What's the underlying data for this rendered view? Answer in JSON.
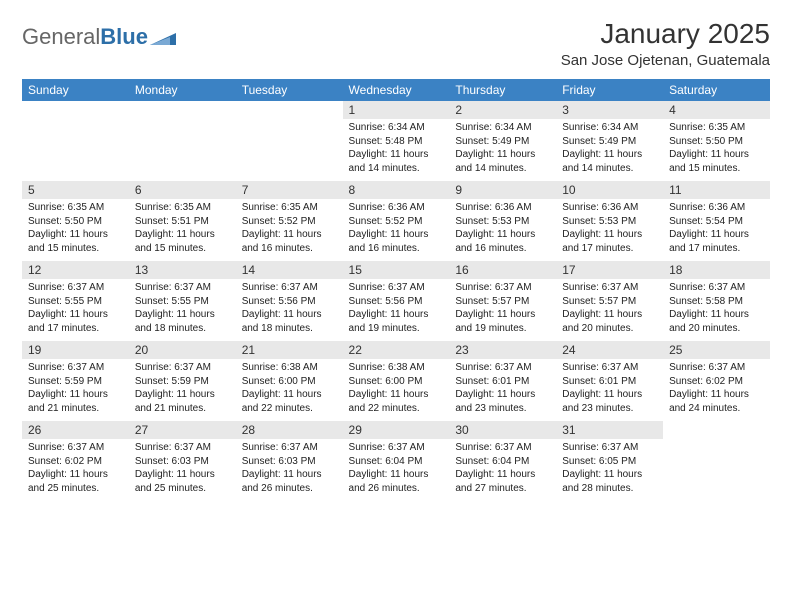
{
  "brand": {
    "word1": "General",
    "word2": "Blue"
  },
  "header": {
    "title": "January 2025",
    "location": "San Jose Ojetenan, Guatemala"
  },
  "colors": {
    "header_row": "#3b82c4",
    "week_rule": "#2d6fa8",
    "day_bg": "#e8e8e8",
    "logo_blue": "#2d6fa8",
    "text": "#222222",
    "background": "#ffffff"
  },
  "weekdays": [
    "Sunday",
    "Monday",
    "Tuesday",
    "Wednesday",
    "Thursday",
    "Friday",
    "Saturday"
  ],
  "weeks": [
    [
      {
        "n": "",
        "l": [
          "",
          "",
          "",
          ""
        ]
      },
      {
        "n": "",
        "l": [
          "",
          "",
          "",
          ""
        ]
      },
      {
        "n": "",
        "l": [
          "",
          "",
          "",
          ""
        ]
      },
      {
        "n": "1",
        "l": [
          "Sunrise: 6:34 AM",
          "Sunset: 5:48 PM",
          "Daylight: 11 hours",
          "and 14 minutes."
        ]
      },
      {
        "n": "2",
        "l": [
          "Sunrise: 6:34 AM",
          "Sunset: 5:49 PM",
          "Daylight: 11 hours",
          "and 14 minutes."
        ]
      },
      {
        "n": "3",
        "l": [
          "Sunrise: 6:34 AM",
          "Sunset: 5:49 PM",
          "Daylight: 11 hours",
          "and 14 minutes."
        ]
      },
      {
        "n": "4",
        "l": [
          "Sunrise: 6:35 AM",
          "Sunset: 5:50 PM",
          "Daylight: 11 hours",
          "and 15 minutes."
        ]
      }
    ],
    [
      {
        "n": "5",
        "l": [
          "Sunrise: 6:35 AM",
          "Sunset: 5:50 PM",
          "Daylight: 11 hours",
          "and 15 minutes."
        ]
      },
      {
        "n": "6",
        "l": [
          "Sunrise: 6:35 AM",
          "Sunset: 5:51 PM",
          "Daylight: 11 hours",
          "and 15 minutes."
        ]
      },
      {
        "n": "7",
        "l": [
          "Sunrise: 6:35 AM",
          "Sunset: 5:52 PM",
          "Daylight: 11 hours",
          "and 16 minutes."
        ]
      },
      {
        "n": "8",
        "l": [
          "Sunrise: 6:36 AM",
          "Sunset: 5:52 PM",
          "Daylight: 11 hours",
          "and 16 minutes."
        ]
      },
      {
        "n": "9",
        "l": [
          "Sunrise: 6:36 AM",
          "Sunset: 5:53 PM",
          "Daylight: 11 hours",
          "and 16 minutes."
        ]
      },
      {
        "n": "10",
        "l": [
          "Sunrise: 6:36 AM",
          "Sunset: 5:53 PM",
          "Daylight: 11 hours",
          "and 17 minutes."
        ]
      },
      {
        "n": "11",
        "l": [
          "Sunrise: 6:36 AM",
          "Sunset: 5:54 PM",
          "Daylight: 11 hours",
          "and 17 minutes."
        ]
      }
    ],
    [
      {
        "n": "12",
        "l": [
          "Sunrise: 6:37 AM",
          "Sunset: 5:55 PM",
          "Daylight: 11 hours",
          "and 17 minutes."
        ]
      },
      {
        "n": "13",
        "l": [
          "Sunrise: 6:37 AM",
          "Sunset: 5:55 PM",
          "Daylight: 11 hours",
          "and 18 minutes."
        ]
      },
      {
        "n": "14",
        "l": [
          "Sunrise: 6:37 AM",
          "Sunset: 5:56 PM",
          "Daylight: 11 hours",
          "and 18 minutes."
        ]
      },
      {
        "n": "15",
        "l": [
          "Sunrise: 6:37 AM",
          "Sunset: 5:56 PM",
          "Daylight: 11 hours",
          "and 19 minutes."
        ]
      },
      {
        "n": "16",
        "l": [
          "Sunrise: 6:37 AM",
          "Sunset: 5:57 PM",
          "Daylight: 11 hours",
          "and 19 minutes."
        ]
      },
      {
        "n": "17",
        "l": [
          "Sunrise: 6:37 AM",
          "Sunset: 5:57 PM",
          "Daylight: 11 hours",
          "and 20 minutes."
        ]
      },
      {
        "n": "18",
        "l": [
          "Sunrise: 6:37 AM",
          "Sunset: 5:58 PM",
          "Daylight: 11 hours",
          "and 20 minutes."
        ]
      }
    ],
    [
      {
        "n": "19",
        "l": [
          "Sunrise: 6:37 AM",
          "Sunset: 5:59 PM",
          "Daylight: 11 hours",
          "and 21 minutes."
        ]
      },
      {
        "n": "20",
        "l": [
          "Sunrise: 6:37 AM",
          "Sunset: 5:59 PM",
          "Daylight: 11 hours",
          "and 21 minutes."
        ]
      },
      {
        "n": "21",
        "l": [
          "Sunrise: 6:38 AM",
          "Sunset: 6:00 PM",
          "Daylight: 11 hours",
          "and 22 minutes."
        ]
      },
      {
        "n": "22",
        "l": [
          "Sunrise: 6:38 AM",
          "Sunset: 6:00 PM",
          "Daylight: 11 hours",
          "and 22 minutes."
        ]
      },
      {
        "n": "23",
        "l": [
          "Sunrise: 6:37 AM",
          "Sunset: 6:01 PM",
          "Daylight: 11 hours",
          "and 23 minutes."
        ]
      },
      {
        "n": "24",
        "l": [
          "Sunrise: 6:37 AM",
          "Sunset: 6:01 PM",
          "Daylight: 11 hours",
          "and 23 minutes."
        ]
      },
      {
        "n": "25",
        "l": [
          "Sunrise: 6:37 AM",
          "Sunset: 6:02 PM",
          "Daylight: 11 hours",
          "and 24 minutes."
        ]
      }
    ],
    [
      {
        "n": "26",
        "l": [
          "Sunrise: 6:37 AM",
          "Sunset: 6:02 PM",
          "Daylight: 11 hours",
          "and 25 minutes."
        ]
      },
      {
        "n": "27",
        "l": [
          "Sunrise: 6:37 AM",
          "Sunset: 6:03 PM",
          "Daylight: 11 hours",
          "and 25 minutes."
        ]
      },
      {
        "n": "28",
        "l": [
          "Sunrise: 6:37 AM",
          "Sunset: 6:03 PM",
          "Daylight: 11 hours",
          "and 26 minutes."
        ]
      },
      {
        "n": "29",
        "l": [
          "Sunrise: 6:37 AM",
          "Sunset: 6:04 PM",
          "Daylight: 11 hours",
          "and 26 minutes."
        ]
      },
      {
        "n": "30",
        "l": [
          "Sunrise: 6:37 AM",
          "Sunset: 6:04 PM",
          "Daylight: 11 hours",
          "and 27 minutes."
        ]
      },
      {
        "n": "31",
        "l": [
          "Sunrise: 6:37 AM",
          "Sunset: 6:05 PM",
          "Daylight: 11 hours",
          "and 28 minutes."
        ]
      },
      {
        "n": "",
        "l": [
          "",
          "",
          "",
          ""
        ]
      }
    ]
  ]
}
